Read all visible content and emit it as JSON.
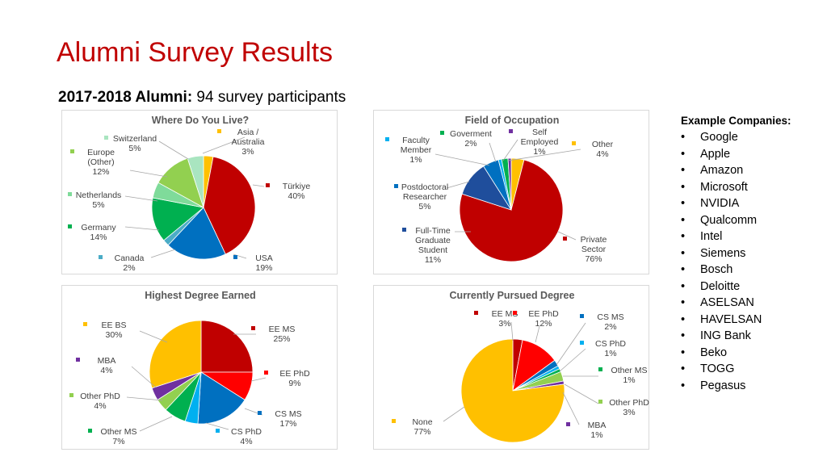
{
  "slide": {
    "title": "Alumni Survey Results",
    "subtitle_bold": "2017-2018 Alumni:",
    "subtitle_rest": " 94 survey participants"
  },
  "companies": {
    "heading": "Example Companies:",
    "items": [
      "Google",
      "Apple",
      "Amazon",
      "Microsoft",
      "NVIDIA",
      "Qualcomm",
      "Intel",
      "Siemens",
      "Bosch",
      "Deloitte",
      "ASELSAN",
      "HAVELSAN",
      "ING Bank",
      "Beko",
      "TOGG",
      "Pegasus"
    ]
  },
  "chart_data": [
    {
      "type": "pie",
      "title": "Where Do You Live?",
      "slices": [
        {
          "label": "Asia /\nAustralia",
          "value": 3,
          "value_label": "3%",
          "color": "#ffc000"
        },
        {
          "label": "Türkiye",
          "value": 40,
          "value_label": "40%",
          "color": "#c00000"
        },
        {
          "label": "USA",
          "value": 19,
          "value_label": "19%",
          "color": "#0070c0"
        },
        {
          "label": "Canada",
          "value": 2,
          "value_label": "2%",
          "color": "#4bacc6"
        },
        {
          "label": "Germany",
          "value": 14,
          "value_label": "14%",
          "color": "#00b050"
        },
        {
          "label": "Netherlands",
          "value": 5,
          "value_label": "5%",
          "color": "#7fdb9a"
        },
        {
          "label": "Europe\n(Other)",
          "value": 12,
          "value_label": "12%",
          "color": "#92d050"
        },
        {
          "label": "Switzerland",
          "value": 5,
          "value_label": "5%",
          "color": "#a9e5c0"
        }
      ]
    },
    {
      "type": "pie",
      "title": "Field of Occupation",
      "slices": [
        {
          "label": "Other",
          "value": 4,
          "value_label": "4%",
          "color": "#ffc000"
        },
        {
          "label": "Private\nSector",
          "value": 76,
          "value_label": "76%",
          "color": "#c00000"
        },
        {
          "label": "Full-Time\nGraduate\nStudent",
          "value": 11,
          "value_label": "11%",
          "color": "#1f4e9c"
        },
        {
          "label": "Postdoctoral\nResearcher",
          "value": 5,
          "value_label": "5%",
          "color": "#0070c0"
        },
        {
          "label": "Faculty\nMember",
          "value": 1,
          "value_label": "1%",
          "color": "#00b0f0"
        },
        {
          "label": "Goverment",
          "value": 2,
          "value_label": "2%",
          "color": "#00b050"
        },
        {
          "label": "Self\nEmployed",
          "value": 1,
          "value_label": "1%",
          "color": "#7030a0"
        }
      ]
    },
    {
      "type": "pie",
      "title": "Highest Degree Earned",
      "slices": [
        {
          "label": "EE MS",
          "value": 25,
          "value_label": "25%",
          "color": "#c00000"
        },
        {
          "label": "EE PhD",
          "value": 9,
          "value_label": "9%",
          "color": "#ff0000"
        },
        {
          "label": "CS MS",
          "value": 17,
          "value_label": "17%",
          "color": "#0070c0"
        },
        {
          "label": "CS PhD",
          "value": 4,
          "value_label": "4%",
          "color": "#00b0f0"
        },
        {
          "label": "Other MS",
          "value": 7,
          "value_label": "7%",
          "color": "#00b050"
        },
        {
          "label": "Other PhD",
          "value": 4,
          "value_label": "4%",
          "color": "#92d050"
        },
        {
          "label": "MBA",
          "value": 4,
          "value_label": "4%",
          "color": "#7030a0"
        },
        {
          "label": "EE BS",
          "value": 30,
          "value_label": "30%",
          "color": "#ffc000"
        }
      ]
    },
    {
      "type": "pie",
      "title": "Currently Pursued Degree",
      "slices": [
        {
          "label": "EE MS",
          "value": 3,
          "value_label": "3%",
          "color": "#c00000"
        },
        {
          "label": "EE PhD",
          "value": 12,
          "value_label": "12%",
          "color": "#ff0000"
        },
        {
          "label": "CS MS",
          "value": 2,
          "value_label": "2%",
          "color": "#0070c0"
        },
        {
          "label": "CS PhD",
          "value": 1,
          "value_label": "1%",
          "color": "#00b0f0"
        },
        {
          "label": "Other MS",
          "value": 1,
          "value_label": "1%",
          "color": "#00b050"
        },
        {
          "label": "Other PhD",
          "value": 3,
          "value_label": "3%",
          "color": "#92d050"
        },
        {
          "label": "MBA",
          "value": 1,
          "value_label": "1%",
          "color": "#7030a0"
        },
        {
          "label": "None",
          "value": 77,
          "value_label": "77%",
          "color": "#ffc000"
        }
      ]
    }
  ]
}
